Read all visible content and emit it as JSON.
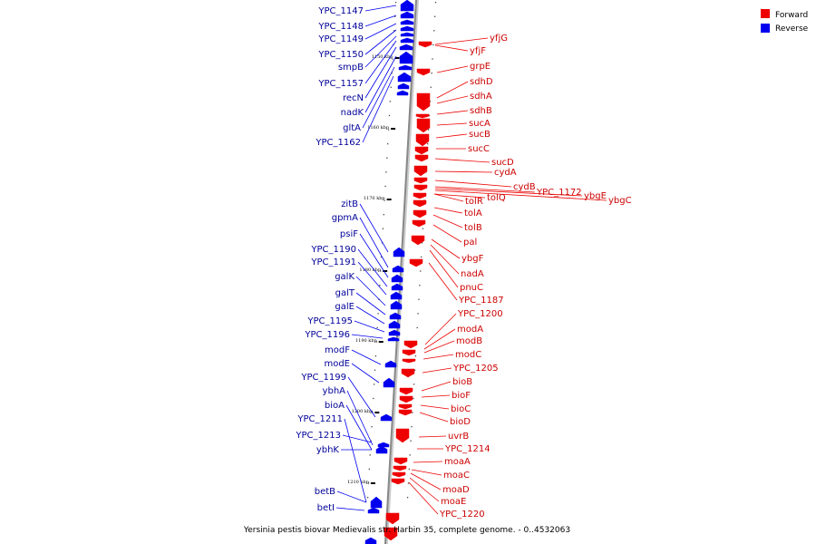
{
  "caption": "Yersinia pestis biovar Medievalis str. Harbin 35, complete genome. - 0..4532063",
  "legend": [
    {
      "label": "Forward",
      "color": "#ee0000"
    },
    {
      "label": "Reverse",
      "color": "#0000ee"
    }
  ],
  "colors": {
    "forward": "#ee0000",
    "reverse": "#0000ee",
    "forward_label": "#cc0000",
    "reverse_label": "#000099",
    "axis": "#999999"
  },
  "kbp_marks": [
    "1150 kbp",
    "1160 kbp",
    "1170 kbp",
    "1180 kbp",
    "1190 kbp",
    "1200 kbp",
    "1210 kbp"
  ],
  "reverse_genes": [
    "YPC_1147",
    "YPC_1148",
    "YPC_1149",
    "YPC_1150",
    "smpB",
    "YPC_1157",
    "recN",
    "nadK",
    "gltA",
    "YPC_1162",
    "zitB",
    "gpmA",
    "psiF",
    "YPC_1190",
    "YPC_1191",
    "galK",
    "galT",
    "galE",
    "YPC_1195",
    "YPC_1196",
    "modF",
    "modE",
    "YPC_1199",
    "ybhA",
    "bioA",
    "YPC_1211",
    "YPC_1213",
    "ybhK",
    "betB",
    "betI"
  ],
  "forward_genes": [
    "yfjG",
    "yfjF",
    "grpE",
    "sdhD",
    "sdhA",
    "sdhB",
    "sucA",
    "sucB",
    "sucC",
    "sucD",
    "cydA",
    "cydB",
    "YPC_1172",
    "ybgE",
    "ybgC",
    "tolR",
    "tolQ",
    "tolA",
    "tolB",
    "pal",
    "ybgF",
    "nadA",
    "pnuC",
    "YPC_1187",
    "YPC_1200",
    "modA",
    "modB",
    "modC",
    "YPC_1205",
    "bioB",
    "bioF",
    "bioC",
    "bioD",
    "uvrB",
    "YPC_1214",
    "moaA",
    "moaC",
    "moaD",
    "moaE",
    "YPC_1220"
  ]
}
